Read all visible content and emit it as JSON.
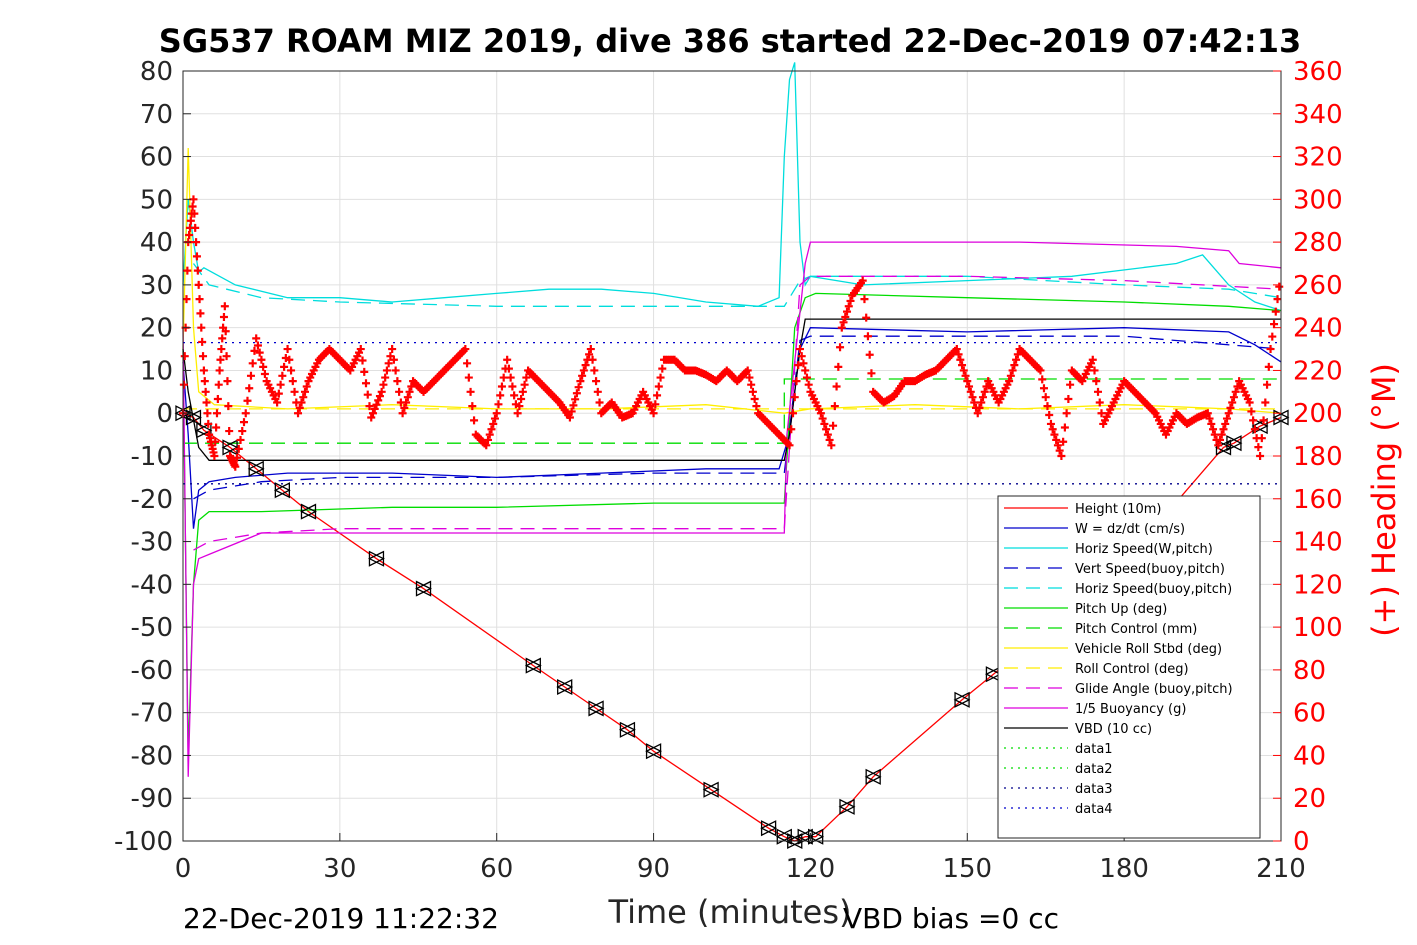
{
  "chart_data": {
    "type": "line",
    "title": "SG537 ROAM MIZ 2019, dive 386 started 22-Dec-2019 07:42:13",
    "xlabel": "Time (minutes)",
    "ylabel": "",
    "y2label": "(+) Heading (°M)",
    "xlim": [
      0,
      210
    ],
    "ylim": [
      -100,
      80
    ],
    "y2lim": [
      0,
      360
    ],
    "xticks": [
      "0",
      "30",
      "60",
      "90",
      "120",
      "150",
      "180",
      "210"
    ],
    "yticks": [
      "80",
      "70",
      "60",
      "50",
      "40",
      "30",
      "20",
      "10",
      "0",
      "-10",
      "-20",
      "-30",
      "-40",
      "-50",
      "-60",
      "-70",
      "-80",
      "-90",
      "-100"
    ],
    "y2ticks": [
      "360",
      "340",
      "320",
      "300",
      "280",
      "260",
      "240",
      "220",
      "200",
      "180",
      "160",
      "140",
      "120",
      "100",
      "80",
      "60",
      "40",
      "20",
      "0"
    ],
    "grid": true,
    "legend_position": "bottom-right",
    "footer_left": "22-Dec-2019 11:22:32",
    "footer_right": "VBD bias =0 cc",
    "colors": {
      "heading": "#ff0000",
      "height": "#ff0000",
      "w": "#0000cc",
      "horiz": "#00dddd",
      "pitch": "#00dd00",
      "roll": "#ffee00",
      "glide": "#dd00dd",
      "buoy": "#dd00dd",
      "vbd": "#000000"
    },
    "series": [
      {
        "name": "Height (10m)",
        "color": "#ff0000",
        "dash": "solid",
        "markers": true,
        "x": [
          0,
          2,
          4,
          9,
          14,
          19,
          24,
          37,
          46,
          67,
          73,
          79,
          85,
          90,
          101,
          112,
          115,
          117,
          119,
          121,
          127,
          132,
          149,
          155,
          163,
          175,
          187,
          199,
          201,
          206,
          210
        ],
        "y": [
          0,
          -1,
          -4,
          -8,
          -13,
          -18,
          -23,
          -34,
          -41,
          -59,
          -64,
          -69,
          -74,
          -79,
          -88,
          -97,
          -99,
          -100,
          -99,
          -99,
          -92,
          -85,
          -67,
          -61,
          -53,
          -40,
          -25,
          -8,
          -7,
          -3,
          -1
        ]
      },
      {
        "name": "W = dz/dt (cm/s)",
        "color": "#0000cc",
        "dash": "solid",
        "x": [
          0,
          1,
          2,
          3,
          5,
          10,
          20,
          40,
          60,
          80,
          100,
          114,
          116,
          118,
          120,
          150,
          180,
          200,
          205,
          210
        ],
        "y": [
          12,
          -5,
          -27,
          -18,
          -16,
          -15,
          -14,
          -14,
          -15,
          -14,
          -13,
          -13,
          -5,
          15,
          20,
          19,
          20,
          19,
          16,
          12
        ]
      },
      {
        "name": "Horiz Speed(W,pitch)",
        "color": "#00dddd",
        "dash": "solid",
        "x": [
          0,
          1,
          2,
          3,
          4,
          10,
          20,
          30,
          40,
          50,
          60,
          70,
          80,
          90,
          100,
          110,
          114,
          115,
          116,
          117,
          118,
          119,
          120,
          130,
          150,
          170,
          190,
          195,
          200,
          205,
          210
        ],
        "y": [
          30,
          50,
          40,
          33,
          34,
          30,
          27,
          27,
          26,
          27,
          28,
          29,
          29,
          28,
          26,
          25,
          27,
          60,
          78,
          82,
          40,
          30,
          32,
          30,
          31,
          32,
          35,
          37,
          30,
          26,
          24
        ]
      },
      {
        "name": "Vert Speed(buoy,pitch)",
        "color": "#0000cc",
        "dash": "dashed",
        "x": [
          2,
          5,
          15,
          30,
          60,
          90,
          115,
          118,
          120,
          150,
          180,
          210
        ],
        "y": [
          -20,
          -18,
          -16,
          -15,
          -15,
          -14,
          -14,
          17,
          18,
          18,
          18,
          15
        ]
      },
      {
        "name": "Horiz Speed(buoy,pitch)",
        "color": "#00dddd",
        "dash": "dashed",
        "x": [
          2,
          5,
          15,
          30,
          60,
          90,
          115,
          118,
          120,
          150,
          180,
          200,
          210
        ],
        "y": [
          35,
          30,
          27,
          26,
          25,
          25,
          25,
          31,
          32,
          32,
          30,
          29,
          27
        ]
      },
      {
        "name": "Pitch Up (deg)",
        "color": "#00dd00",
        "dash": "solid",
        "x": [
          0,
          1,
          2,
          3,
          5,
          15,
          40,
          60,
          90,
          115,
          117,
          119,
          121,
          150,
          180,
          200,
          210
        ],
        "y": [
          15,
          -80,
          -40,
          -25,
          -23,
          -23,
          -22,
          -22,
          -21,
          -21,
          20,
          27,
          28,
          27,
          26,
          25,
          24
        ]
      },
      {
        "name": "Pitch Control (mm)",
        "color": "#00dd00",
        "dash": "dashed",
        "x": [
          0,
          115,
          115.01,
          210
        ],
        "y": [
          -7,
          -7,
          8,
          8
        ]
      },
      {
        "name": "Vehicle Roll Stbd (deg)",
        "color": "#ffee00",
        "dash": "solid",
        "x": [
          0,
          1,
          2,
          3,
          6,
          20,
          40,
          60,
          80,
          100,
          115,
          120,
          140,
          160,
          180,
          200,
          210
        ],
        "y": [
          15,
          62,
          20,
          5,
          2,
          1,
          2,
          1,
          1,
          2,
          0,
          1,
          2,
          1,
          2,
          1,
          0
        ]
      },
      {
        "name": "Roll Control (deg)",
        "color": "#ffee00",
        "dash": "dashed",
        "x": [
          0,
          210
        ],
        "y": [
          1,
          1
        ]
      },
      {
        "name": "Glide Angle (buoy,pitch)",
        "color": "#dd00dd",
        "dash": "dashed",
        "x": [
          2,
          5,
          15,
          30,
          60,
          90,
          115,
          118,
          120,
          150,
          180,
          210
        ],
        "y": [
          -32,
          -30,
          -28,
          -27,
          -27,
          -27,
          -27,
          30,
          32,
          32,
          31,
          29
        ]
      },
      {
        "name": "1/5 Buoyancy (g)",
        "color": "#dd00dd",
        "dash": "solid",
        "x": [
          0,
          1,
          2,
          3,
          5,
          15,
          115,
          115.5,
          119,
          120,
          160,
          190,
          200,
          202,
          210
        ],
        "y": [
          20,
          -85,
          -40,
          -34,
          -33,
          -28,
          -28,
          -5,
          35,
          40,
          40,
          39,
          38,
          35,
          34
        ]
      },
      {
        "name": "VBD (10 cc)",
        "color": "#000000",
        "dash": "solid",
        "x": [
          0,
          1,
          3,
          5,
          115,
          116,
          118,
          119,
          210
        ],
        "y": [
          15,
          5,
          -8,
          -11,
          -11,
          -5,
          15,
          22,
          22
        ]
      },
      {
        "name": "data1",
        "color": "#00dd00",
        "dash": "dotted",
        "x": [],
        "y": []
      },
      {
        "name": "data2",
        "color": "#00dd00",
        "dash": "dotted",
        "x": [],
        "y": []
      },
      {
        "name": "data3",
        "color": "#00008b",
        "dash": "dotted",
        "x": [
          0,
          210
        ],
        "y": [
          -16.5,
          -16.5
        ]
      },
      {
        "name": "data4",
        "color": "#0000cc",
        "dash": "dotted",
        "x": [
          0,
          210
        ],
        "y": [
          16.5,
          16.5
        ]
      }
    ],
    "heading_series": {
      "axis": "right",
      "marker": "+",
      "color": "#ff0000",
      "x": [
        0,
        1,
        2,
        3,
        4,
        5,
        6,
        7,
        8,
        9,
        10,
        12,
        14,
        16,
        18,
        20,
        22,
        24,
        26,
        28,
        30,
        32,
        34,
        36,
        38,
        40,
        42,
        44,
        46,
        48,
        50,
        52,
        54,
        56,
        58,
        60,
        62,
        64,
        66,
        68,
        70,
        72,
        74,
        76,
        78,
        80,
        82,
        84,
        86,
        88,
        90,
        92,
        94,
        96,
        98,
        100,
        102,
        104,
        106,
        108,
        110,
        112,
        114,
        116,
        118,
        120,
        122,
        124,
        126,
        128,
        130,
        132,
        134,
        136,
        138,
        140,
        142,
        144,
        146,
        148,
        150,
        152,
        154,
        156,
        158,
        160,
        162,
        164,
        166,
        168,
        170,
        172,
        174,
        176,
        178,
        180,
        182,
        184,
        186,
        188,
        190,
        192,
        194,
        196,
        198,
        200,
        202,
        204,
        206,
        208,
        210
      ],
      "y": [
        200,
        280,
        300,
        260,
        220,
        190,
        180,
        220,
        250,
        180,
        175,
        200,
        235,
        215,
        205,
        230,
        200,
        215,
        225,
        230,
        225,
        220,
        230,
        198,
        210,
        230,
        200,
        215,
        210,
        215,
        220,
        225,
        230,
        190,
        185,
        200,
        225,
        200,
        220,
        215,
        210,
        205,
        198,
        215,
        230,
        200,
        205,
        198,
        200,
        210,
        200,
        225,
        225,
        220,
        220,
        218,
        215,
        220,
        215,
        220,
        200,
        195,
        190,
        185,
        230,
        210,
        200,
        185,
        240,
        255,
        262,
        210,
        205,
        208,
        215,
        215,
        218,
        220,
        225,
        230,
        215,
        200,
        215,
        205,
        215,
        230,
        225,
        220,
        195,
        180,
        220,
        215,
        225,
        195,
        205,
        215,
        210,
        205,
        200,
        190,
        200,
        195,
        198,
        200,
        185,
        200,
        215,
        205,
        180,
        230,
        265
      ]
    }
  }
}
